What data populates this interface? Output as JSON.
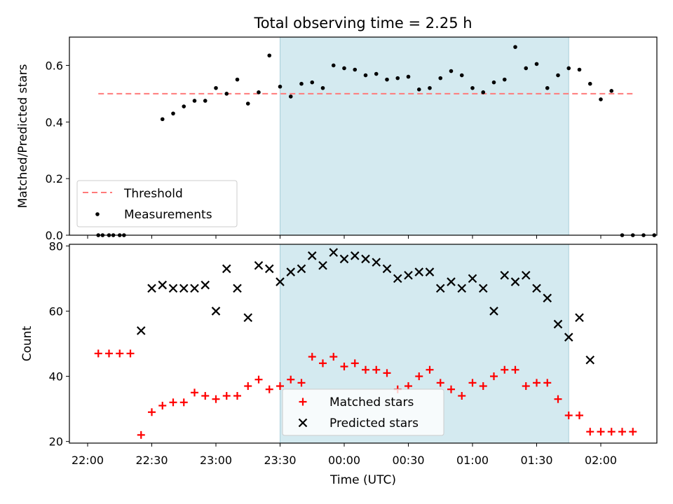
{
  "chart_data": [
    {
      "type": "scatter",
      "title": "Total observing time = 2.25 h",
      "xlabel": "",
      "ylabel": "Matched/Predicted stars",
      "ylim": [
        0,
        0.7
      ],
      "yticks": [
        "0.0",
        "0.2",
        "0.4",
        "0.6"
      ],
      "shaded_span": {
        "start": "23:30",
        "end": "01:45",
        "color": "#d4eaf0"
      },
      "threshold": {
        "name": "Threshold",
        "y": 0.5,
        "from": "22:05",
        "to": "02:15",
        "color": "#ff7a7a"
      },
      "series": [
        {
          "name": "Measurements",
          "color": "#000000",
          "points": [
            [
              "22:05",
              0
            ],
            [
              "22:07",
              0
            ],
            [
              "22:10",
              0
            ],
            [
              "22:12",
              0
            ],
            [
              "22:15",
              0
            ],
            [
              "22:17",
              0
            ],
            [
              "22:35",
              0.41
            ],
            [
              "22:40",
              0.43
            ],
            [
              "22:45",
              0.455
            ],
            [
              "22:50",
              0.475
            ],
            [
              "22:55",
              0.475
            ],
            [
              "23:00",
              0.52
            ],
            [
              "23:05",
              0.5
            ],
            [
              "23:10",
              0.55
            ],
            [
              "23:15",
              0.465
            ],
            [
              "23:20",
              0.505
            ],
            [
              "23:25",
              0.635
            ],
            [
              "23:30",
              0.525
            ],
            [
              "23:35",
              0.49
            ],
            [
              "23:40",
              0.535
            ],
            [
              "23:45",
              0.54
            ],
            [
              "23:50",
              0.52
            ],
            [
              "23:55",
              0.6
            ],
            [
              "00:00",
              0.59
            ],
            [
              "00:05",
              0.585
            ],
            [
              "00:10",
              0.565
            ],
            [
              "00:15",
              0.57
            ],
            [
              "00:20",
              0.55
            ],
            [
              "00:25",
              0.555
            ],
            [
              "00:30",
              0.56
            ],
            [
              "00:35",
              0.515
            ],
            [
              "00:40",
              0.52
            ],
            [
              "00:45",
              0.555
            ],
            [
              "00:50",
              0.58
            ],
            [
              "00:55",
              0.565
            ],
            [
              "01:00",
              0.52
            ],
            [
              "01:05",
              0.505
            ],
            [
              "01:10",
              0.54
            ],
            [
              "01:15",
              0.55
            ],
            [
              "01:20",
              0.665
            ],
            [
              "01:25",
              0.59
            ],
            [
              "01:30",
              0.605
            ],
            [
              "01:35",
              0.52
            ],
            [
              "01:40",
              0.565
            ],
            [
              "01:45",
              0.59
            ],
            [
              "01:50",
              0.585
            ],
            [
              "01:55",
              0.535
            ],
            [
              "02:00",
              0.48
            ],
            [
              "02:05",
              0.51
            ],
            [
              "02:10",
              0
            ],
            [
              "02:15",
              0
            ],
            [
              "02:20",
              0
            ],
            [
              "02:25",
              0
            ]
          ]
        }
      ],
      "legend": [
        "Threshold",
        "Measurements"
      ],
      "legend_position": "lower-left"
    },
    {
      "type": "scatter",
      "title": "",
      "xlabel": "Time (UTC)",
      "ylabel": "Count",
      "ylim": [
        19.5,
        80.5
      ],
      "yticks": [
        "20",
        "40",
        "60",
        "80"
      ],
      "xticks": [
        "22:00",
        "22:30",
        "23:00",
        "23:30",
        "00:00",
        "00:30",
        "01:00",
        "01:30",
        "02:00"
      ],
      "shaded_span": {
        "start": "23:30",
        "end": "01:45",
        "color": "#d4eaf0"
      },
      "series": [
        {
          "name": "Matched stars",
          "marker": "plus",
          "color": "#ff0000",
          "points": [
            [
              "22:05",
              47
            ],
            [
              "22:10",
              47
            ],
            [
              "22:15",
              47
            ],
            [
              "22:20",
              47
            ],
            [
              "22:25",
              22
            ],
            [
              "22:30",
              29
            ],
            [
              "22:35",
              31
            ],
            [
              "22:40",
              32
            ],
            [
              "22:45",
              32
            ],
            [
              "22:50",
              35
            ],
            [
              "22:55",
              34
            ],
            [
              "23:00",
              33
            ],
            [
              "23:05",
              34
            ],
            [
              "23:10",
              34
            ],
            [
              "23:15",
              37
            ],
            [
              "23:20",
              39
            ],
            [
              "23:25",
              36
            ],
            [
              "23:30",
              37
            ],
            [
              "23:35",
              39
            ],
            [
              "23:40",
              38
            ],
            [
              "23:45",
              46
            ],
            [
              "23:50",
              44
            ],
            [
              "23:55",
              46
            ],
            [
              "00:00",
              43
            ],
            [
              "00:05",
              44
            ],
            [
              "00:10",
              42
            ],
            [
              "00:15",
              42
            ],
            [
              "00:20",
              41
            ],
            [
              "00:25",
              36
            ],
            [
              "00:30",
              37
            ],
            [
              "00:35",
              40
            ],
            [
              "00:40",
              42
            ],
            [
              "00:45",
              38
            ],
            [
              "00:50",
              36
            ],
            [
              "00:55",
              34
            ],
            [
              "01:00",
              38
            ],
            [
              "01:05",
              37
            ],
            [
              "01:10",
              40
            ],
            [
              "01:15",
              42
            ],
            [
              "01:20",
              42
            ],
            [
              "01:25",
              37
            ],
            [
              "01:30",
              38
            ],
            [
              "01:35",
              38
            ],
            [
              "01:40",
              33
            ],
            [
              "01:45",
              28
            ],
            [
              "01:50",
              28
            ],
            [
              "01:55",
              23
            ],
            [
              "02:00",
              23
            ],
            [
              "02:05",
              23
            ],
            [
              "02:10",
              23
            ],
            [
              "02:15",
              23
            ]
          ]
        },
        {
          "name": "Predicted stars",
          "marker": "x",
          "color": "#000000",
          "points": [
            [
              "22:25",
              54
            ],
            [
              "22:30",
              67
            ],
            [
              "22:35",
              68
            ],
            [
              "22:40",
              67
            ],
            [
              "22:45",
              67
            ],
            [
              "22:50",
              67
            ],
            [
              "22:55",
              68
            ],
            [
              "23:00",
              60
            ],
            [
              "23:05",
              73
            ],
            [
              "23:10",
              67
            ],
            [
              "23:15",
              58
            ],
            [
              "23:20",
              74
            ],
            [
              "23:25",
              73
            ],
            [
              "23:30",
              69
            ],
            [
              "23:35",
              72
            ],
            [
              "23:40",
              73
            ],
            [
              "23:45",
              77
            ],
            [
              "23:50",
              74
            ],
            [
              "23:55",
              78
            ],
            [
              "00:00",
              76
            ],
            [
              "00:05",
              77
            ],
            [
              "00:10",
              76
            ],
            [
              "00:15",
              75
            ],
            [
              "00:20",
              73
            ],
            [
              "00:25",
              70
            ],
            [
              "00:30",
              71
            ],
            [
              "00:35",
              72
            ],
            [
              "00:40",
              72
            ],
            [
              "00:45",
              67
            ],
            [
              "00:50",
              69
            ],
            [
              "00:55",
              67
            ],
            [
              "01:00",
              70
            ],
            [
              "01:05",
              67
            ],
            [
              "01:10",
              60
            ],
            [
              "01:15",
              71
            ],
            [
              "01:20",
              69
            ],
            [
              "01:25",
              71
            ],
            [
              "01:30",
              67
            ],
            [
              "01:35",
              64
            ],
            [
              "01:40",
              56
            ],
            [
              "01:45",
              52
            ],
            [
              "01:50",
              58
            ],
            [
              "01:55",
              45
            ]
          ]
        }
      ],
      "legend": [
        "Matched stars",
        "Predicted stars"
      ],
      "legend_position": "lower-center"
    }
  ]
}
